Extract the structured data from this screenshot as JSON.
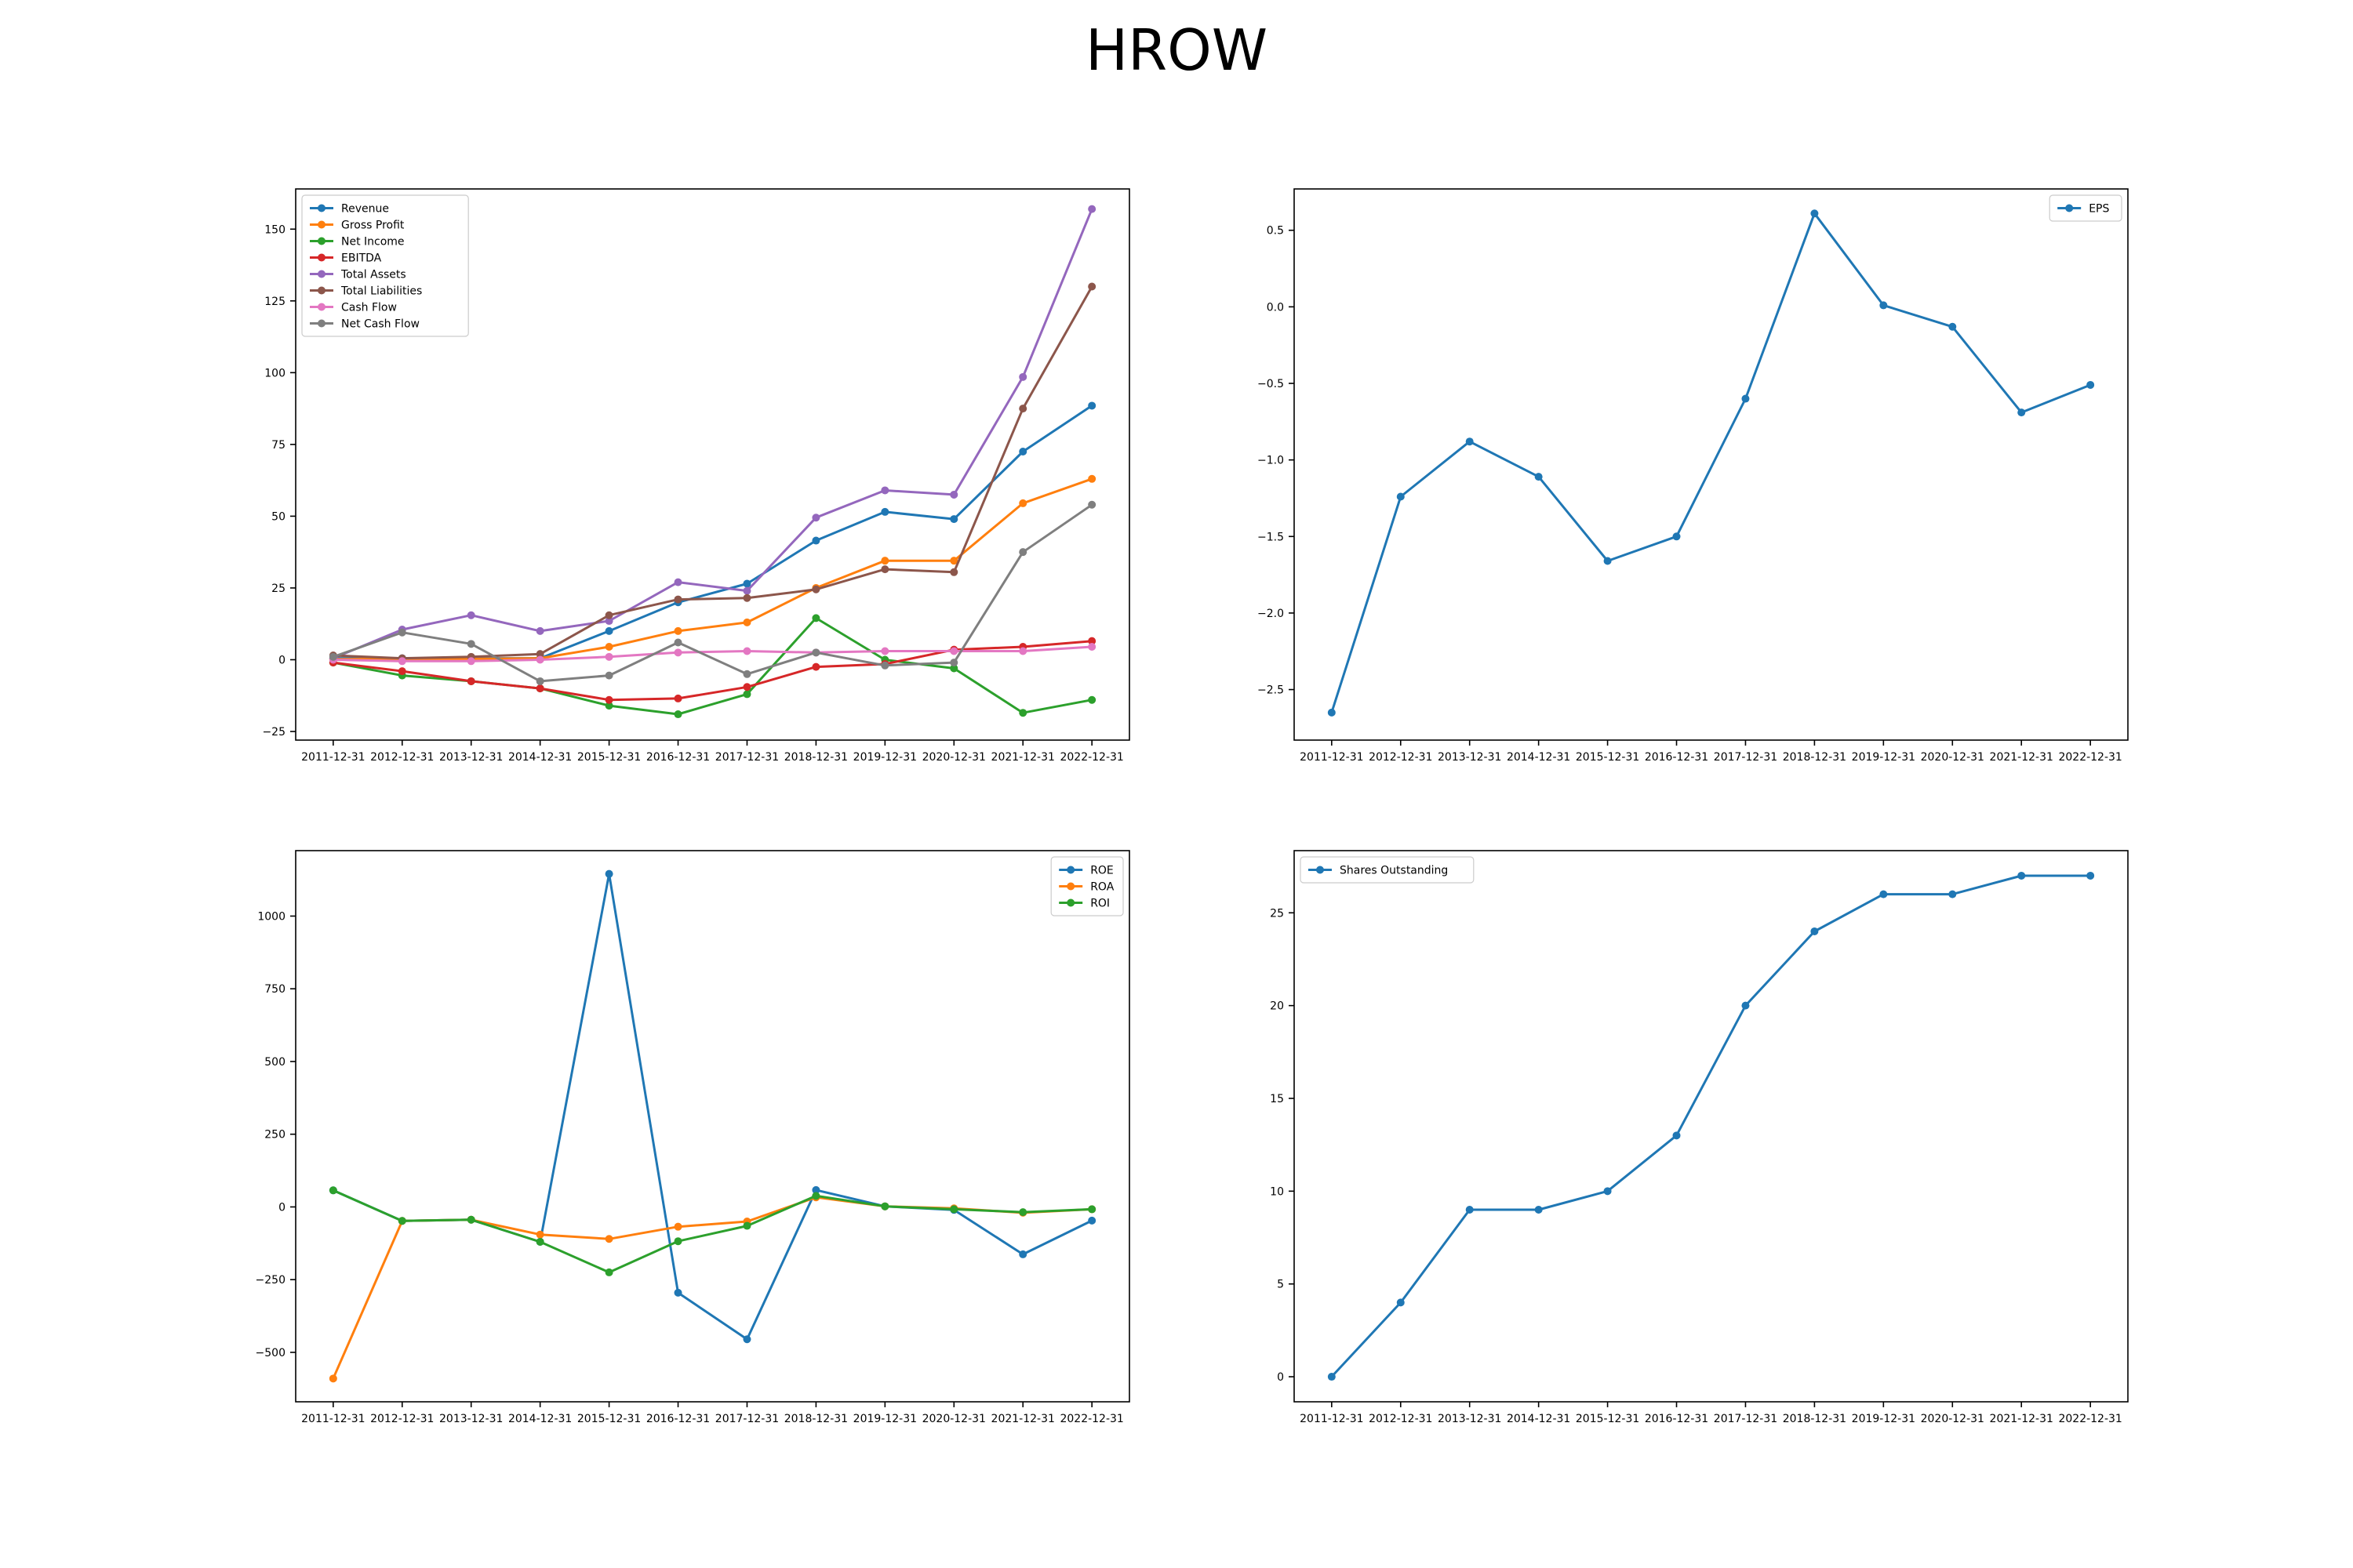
{
  "figure": {
    "title": "HROW"
  },
  "chart_data": [
    {
      "type": "line",
      "categories": [
        "2011-12-31",
        "2012-12-31",
        "2013-12-31",
        "2014-12-31",
        "2015-12-31",
        "2016-12-31",
        "2017-12-31",
        "2018-12-31",
        "2019-12-31",
        "2020-12-31",
        "2021-12-31",
        "2022-12-31"
      ],
      "ylim": [
        -28,
        164
      ],
      "yticks": [
        -25,
        0,
        25,
        50,
        75,
        100,
        125,
        150
      ],
      "legend_position": "upper-left",
      "series": [
        {
          "name": "Revenue",
          "color": "#1f77b4",
          "values": [
            0.5,
            0.5,
            0.5,
            0.5,
            10,
            20,
            26.5,
            41.5,
            51.5,
            49,
            72.5,
            88.5
          ]
        },
        {
          "name": "Gross Profit",
          "color": "#ff7f0e",
          "values": [
            0.2,
            0.3,
            0.3,
            0.5,
            4.5,
            10,
            13,
            25,
            34.5,
            34.5,
            54.5,
            63
          ]
        },
        {
          "name": "Net Income",
          "color": "#2ca02c",
          "values": [
            -1,
            -5.5,
            -7.5,
            -10,
            -16,
            -19,
            -12,
            14.5,
            0,
            -3,
            -18.5,
            -14
          ]
        },
        {
          "name": "EBITDA",
          "color": "#d62728",
          "values": [
            -1,
            -4,
            -7.5,
            -10,
            -14,
            -13.5,
            -9.5,
            -2.5,
            -1.5,
            3.5,
            4.5,
            6.5
          ]
        },
        {
          "name": "Total Assets",
          "color": "#9467bd",
          "values": [
            0.5,
            10.5,
            15.5,
            10,
            13.5,
            27,
            24,
            49.5,
            59,
            57.5,
            98.5,
            157
          ]
        },
        {
          "name": "Total Liabilities",
          "color": "#8c564b",
          "values": [
            1.5,
            0.5,
            1,
            2,
            15.5,
            21,
            21.5,
            24.5,
            31.5,
            30.5,
            87.5,
            130
          ]
        },
        {
          "name": "Cash Flow",
          "color": "#e377c2",
          "values": [
            0,
            -0.5,
            -0.5,
            0,
            1,
            2.5,
            3,
            2.5,
            3,
            3,
            3,
            4.5
          ]
        },
        {
          "name": "Net Cash Flow",
          "color": "#7f7f7f",
          "values": [
            1,
            9.5,
            5.5,
            -7.5,
            -5.5,
            6,
            -5,
            2.5,
            -2,
            -1,
            37.5,
            54
          ]
        }
      ]
    },
    {
      "type": "line",
      "categories": [
        "2011-12-31",
        "2012-12-31",
        "2013-12-31",
        "2014-12-31",
        "2015-12-31",
        "2016-12-31",
        "2017-12-31",
        "2018-12-31",
        "2019-12-31",
        "2020-12-31",
        "2021-12-31",
        "2022-12-31"
      ],
      "ylim": [
        -2.83,
        0.77
      ],
      "yticks": [
        -2.5,
        -2.0,
        -1.5,
        -1.0,
        -0.5,
        0.0,
        0.5
      ],
      "legend_position": "upper-right",
      "series": [
        {
          "name": "EPS",
          "color": "#1f77b4",
          "values": [
            -2.65,
            -1.24,
            -0.88,
            -1.11,
            -1.66,
            -1.5,
            -0.6,
            0.61,
            0.01,
            -0.13,
            -0.69,
            -0.51
          ]
        }
      ]
    },
    {
      "type": "line",
      "categories": [
        "2011-12-31",
        "2012-12-31",
        "2013-12-31",
        "2014-12-31",
        "2015-12-31",
        "2016-12-31",
        "2017-12-31",
        "2018-12-31",
        "2019-12-31",
        "2020-12-31",
        "2021-12-31",
        "2022-12-31"
      ],
      "ylim": [
        -670,
        1225
      ],
      "yticks": [
        -500,
        -250,
        0,
        250,
        500,
        750,
        1000
      ],
      "legend_position": "upper-right",
      "series": [
        {
          "name": "ROE",
          "color": "#1f77b4",
          "values": [
            57,
            -48,
            -44,
            -120,
            1145,
            -295,
            -455,
            58,
            2,
            -10,
            -163,
            -47
          ]
        },
        {
          "name": "ROA",
          "color": "#ff7f0e",
          "values": [
            -590,
            -48,
            -44,
            -95,
            -110,
            -68,
            -50,
            33,
            2,
            -5,
            -20,
            -8
          ]
        },
        {
          "name": "ROI",
          "color": "#2ca02c",
          "values": [
            57,
            -48,
            -44,
            -120,
            -225,
            -118,
            -65,
            38,
            2,
            -8,
            -18,
            -8
          ]
        }
      ]
    },
    {
      "type": "line",
      "categories": [
        "2011-12-31",
        "2012-12-31",
        "2013-12-31",
        "2014-12-31",
        "2015-12-31",
        "2016-12-31",
        "2017-12-31",
        "2018-12-31",
        "2019-12-31",
        "2020-12-31",
        "2021-12-31",
        "2022-12-31"
      ],
      "ylim": [
        -1.35,
        28.35
      ],
      "yticks": [
        0,
        5,
        10,
        15,
        20,
        25
      ],
      "legend_position": "upper-left",
      "series": [
        {
          "name": "Shares Outstanding",
          "color": "#1f77b4",
          "values": [
            0,
            4,
            9,
            9,
            10,
            13,
            20,
            24,
            26,
            26,
            27,
            27
          ]
        }
      ]
    }
  ]
}
